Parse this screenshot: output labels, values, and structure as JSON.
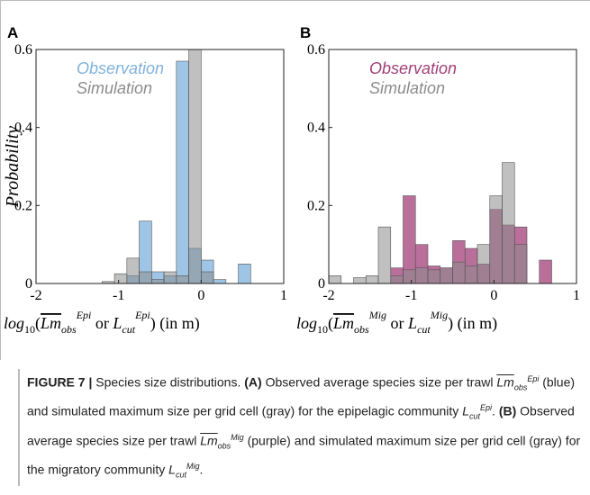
{
  "chart_data": [
    {
      "type": "histogram",
      "panel": "A",
      "ylabel": "Probability",
      "xlabel": [
        "log",
        "10",
        "(",
        "Lm",
        "obs",
        "Epi",
        " or ",
        "L",
        "cut",
        "Epi",
        ") (in m)"
      ],
      "bins": [
        -1.5,
        -1.35,
        -1.2,
        -1.05,
        -0.9,
        -0.75,
        -0.6,
        -0.45,
        -0.3,
        -0.15,
        0,
        0.15,
        0.3,
        0.45,
        0.6
      ],
      "series": [
        {
          "name": "Observation",
          "color": "#7fb2dd",
          "values": [
            0,
            0,
            0,
            0,
            0.02,
            0.16,
            0.03,
            0.02,
            0.57,
            0.09,
            0.06,
            0.01,
            0,
            0.05
          ]
        },
        {
          "name": "Simulation",
          "color": "#8c8c8c",
          "values": [
            0,
            0,
            0.005,
            0.025,
            0.065,
            0.03,
            0.01,
            0.03,
            0.02,
            0.6,
            0.03,
            0,
            0,
            0
          ]
        }
      ],
      "xlim": [
        -2,
        1
      ],
      "xticks": [
        -2,
        -1,
        0,
        1
      ],
      "ylim": [
        0,
        0.6
      ],
      "yticks": [
        0,
        0.2,
        0.4,
        0.6
      ],
      "legend": "upper left"
    },
    {
      "type": "histogram",
      "panel": "B",
      "xlabel": [
        "log",
        "10",
        "(",
        "Lm",
        "obs",
        "Mig",
        " or ",
        "L",
        "cut",
        "Mig",
        ") (in m)"
      ],
      "bins": [
        -2,
        -1.85,
        -1.7,
        -1.55,
        -1.4,
        -1.25,
        -1.1,
        -0.95,
        -0.8,
        -0.65,
        -0.5,
        -0.35,
        -0.2,
        -0.05,
        0.1,
        0.25,
        0.4,
        0.55,
        0.7
      ],
      "series": [
        {
          "name": "Observation",
          "color": "#a23f78",
          "values": [
            0,
            0,
            0,
            0,
            0,
            0.04,
            0.225,
            0.1,
            0.045,
            0.04,
            0.11,
            0.09,
            0.05,
            0.19,
            0.15,
            0.145,
            0,
            0.06
          ]
        },
        {
          "name": "Simulation",
          "color": "#8c8c8c",
          "values": [
            0.02,
            0,
            0.015,
            0.02,
            0.145,
            0.02,
            0.035,
            0.04,
            0.035,
            0.04,
            0.055,
            0.045,
            0.1,
            0.225,
            0.31,
            0.1,
            0,
            0
          ]
        }
      ],
      "xlim": [
        -2,
        1
      ],
      "xticks": [
        -2,
        -1,
        0,
        1
      ],
      "ylim": [
        0,
        0.6
      ],
      "yticks": [
        0,
        0.2,
        0.4,
        0.6
      ],
      "legend": "upper left"
    }
  ],
  "caption": {
    "label": "FIGURE 7 |",
    "t1": "Species size distributions.",
    "a": "(A)",
    "t2": "Observed average species size per trawl",
    "lm": "Lm",
    "obs": "obs",
    "epi": "Epi",
    "t3": "(blue) and simulated maximum size per grid cell (gray) for the epipelagic community",
    "l": "L",
    "cut": "cut",
    "t4": ".",
    "b": "(B)",
    "t5": "Observed average species size per trawl",
    "mig": "Mig",
    "t6": "(purple) and simulated maximum size per grid cell (gray) for the migratory community",
    "t7": "."
  }
}
